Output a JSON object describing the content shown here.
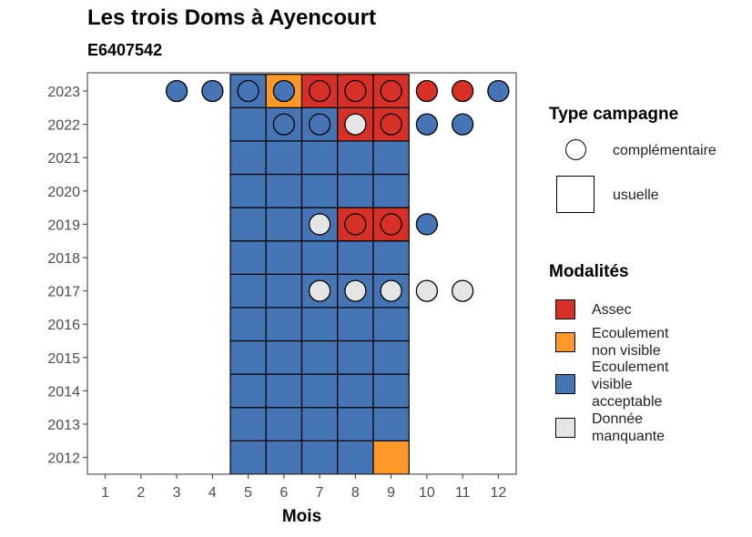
{
  "chart_data": {
    "type": "heatmap",
    "title": "Les trois Doms à Ayencourt",
    "subtitle": "E6407542",
    "xlabel": "Mois",
    "ylabel": "",
    "x_ticks": [
      1,
      2,
      3,
      4,
      5,
      6,
      7,
      8,
      9,
      10,
      11,
      12
    ],
    "y_ticks": [
      2012,
      2013,
      2014,
      2015,
      2016,
      2017,
      2018,
      2019,
      2020,
      2021,
      2022,
      2023
    ],
    "colors": {
      "assec": "#d73027",
      "ecoulement_non_visible": "#fe9929",
      "ecoulement_visible_acceptable": "#4575b4",
      "donnee_manquante": "#e5e5e5"
    },
    "legend_type": {
      "title": "Type campagne",
      "entries": [
        {
          "key": "complementaire",
          "label": "complémentaire",
          "shape": "circle"
        },
        {
          "key": "usuelle",
          "label": "usuelle",
          "shape": "square"
        }
      ]
    },
    "legend_modalites": {
      "title": "Modalités",
      "entries": [
        {
          "key": "assec",
          "label": "Assec"
        },
        {
          "key": "ecoulement_non_visible",
          "label": "Ecoulement non visible"
        },
        {
          "key": "ecoulement_visible_acceptable",
          "label": "Ecoulement visible acceptable"
        },
        {
          "key": "donnee_manquante",
          "label": "Donnée manquante"
        }
      ]
    },
    "usuelle": [
      {
        "year": 2012,
        "months": [
          5,
          6,
          7,
          8
        ],
        "modalite": "ecoulement_visible_acceptable"
      },
      {
        "year": 2012,
        "months": [
          9
        ],
        "modalite": "ecoulement_non_visible"
      },
      {
        "year": 2013,
        "months": [
          5,
          6,
          7,
          8,
          9
        ],
        "modalite": "ecoulement_visible_acceptable"
      },
      {
        "year": 2014,
        "months": [
          5,
          6,
          7,
          8,
          9
        ],
        "modalite": "ecoulement_visible_acceptable"
      },
      {
        "year": 2015,
        "months": [
          5,
          6,
          7,
          8,
          9
        ],
        "modalite": "ecoulement_visible_acceptable"
      },
      {
        "year": 2016,
        "months": [
          5,
          6,
          7,
          8,
          9
        ],
        "modalite": "ecoulement_visible_acceptable"
      },
      {
        "year": 2017,
        "months": [
          5,
          6,
          7,
          8,
          9
        ],
        "modalite": "ecoulement_visible_acceptable"
      },
      {
        "year": 2018,
        "months": [
          5,
          6,
          7,
          8,
          9
        ],
        "modalite": "ecoulement_visible_acceptable"
      },
      {
        "year": 2019,
        "months": [
          5,
          6,
          7
        ],
        "modalite": "ecoulement_visible_acceptable"
      },
      {
        "year": 2019,
        "months": [
          8,
          9
        ],
        "modalite": "assec"
      },
      {
        "year": 2020,
        "months": [
          5,
          6,
          7,
          8,
          9
        ],
        "modalite": "ecoulement_visible_acceptable"
      },
      {
        "year": 2021,
        "months": [
          5,
          6,
          7,
          8,
          9
        ],
        "modalite": "ecoulement_visible_acceptable"
      },
      {
        "year": 2022,
        "months": [
          5,
          6,
          7
        ],
        "modalite": "ecoulement_visible_acceptable"
      },
      {
        "year": 2022,
        "months": [
          8,
          9
        ],
        "modalite": "assec"
      },
      {
        "year": 2023,
        "months": [
          5
        ],
        "modalite": "ecoulement_visible_acceptable"
      },
      {
        "year": 2023,
        "months": [
          6
        ],
        "modalite": "ecoulement_non_visible"
      },
      {
        "year": 2023,
        "months": [
          7,
          8,
          9
        ],
        "modalite": "assec"
      }
    ],
    "complementaire": [
      {
        "year": 2017,
        "months": [
          7,
          8,
          9,
          10,
          11
        ],
        "modalite": "donnee_manquante"
      },
      {
        "year": 2019,
        "months": [
          7
        ],
        "modalite": "donnee_manquante"
      },
      {
        "year": 2019,
        "months": [
          8,
          9
        ],
        "modalite": "assec"
      },
      {
        "year": 2019,
        "months": [
          10
        ],
        "modalite": "ecoulement_visible_acceptable"
      },
      {
        "year": 2022,
        "months": [
          6,
          7,
          10,
          11
        ],
        "modalite": "ecoulement_visible_acceptable"
      },
      {
        "year": 2022,
        "months": [
          8
        ],
        "modalite": "donnee_manquante"
      },
      {
        "year": 2022,
        "months": [
          9
        ],
        "modalite": "assec"
      },
      {
        "year": 2023,
        "months": [
          3,
          4,
          5,
          6,
          12
        ],
        "modalite": "ecoulement_visible_acceptable"
      },
      {
        "year": 2023,
        "months": [
          7,
          8,
          9,
          10,
          11
        ],
        "modalite": "assec"
      }
    ]
  }
}
